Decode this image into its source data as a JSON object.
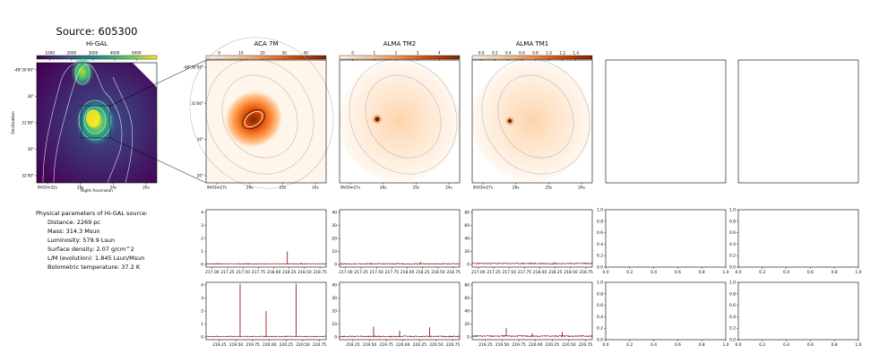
{
  "figure": {
    "title": "Source: 605300"
  },
  "info": {
    "heading": "Physical parameters of Hi-GAL source:",
    "lines": [
      "Distance: 2269 pc",
      "Mass: 314.3 Msun",
      "Luminosity: 579.9 Lsun",
      "Surface density: 2.07 g/cm^2",
      "L/M (evolution): 1.845 Lsun/Msun",
      "Bolometric temperature: 37.2 K"
    ]
  },
  "colors": {
    "viridis": [
      "#440154",
      "#3b528b",
      "#21918c",
      "#5ec962",
      "#fde725"
    ],
    "oranges": [
      "#fff5eb",
      "#fdd0a2",
      "#fd8d3c",
      "#d94801",
      "#7f2704"
    ],
    "spectrum_line": "#8b0000"
  },
  "chart_data": [
    {
      "id": "higal_map",
      "type": "heatmap",
      "title": "Hi-GAL",
      "xlabel": "Right Ascension",
      "ylabel": "Declination",
      "colorbar_ticks": [
        "1000",
        "2000",
        "3000",
        "4000",
        "5000"
      ],
      "x_ticks": [
        "9h03m32s",
        "28s",
        "24s",
        "20s"
      ],
      "y_ticks": [
        "-48°30'00\"",
        "30\"",
        "31'00\"",
        "30\"",
        "32'00\""
      ]
    },
    {
      "id": "aca7m_map",
      "type": "heatmap",
      "title": "ACA 7M",
      "colorbar_ticks": [
        "0",
        "10",
        "20",
        "30",
        "40"
      ],
      "x_ticks": [
        "9h03m27s",
        "26s",
        "25s",
        "24s"
      ],
      "y_ticks": [
        "-48°30'50\"",
        "31'00\"",
        "10\"",
        "20\""
      ]
    },
    {
      "id": "tm2_map",
      "type": "heatmap",
      "title": "ALMA TM2",
      "colorbar_ticks": [
        "0",
        "1",
        "2",
        "3",
        "4"
      ],
      "x_ticks": [
        "9h03m27s",
        "26s",
        "25s",
        "24s"
      ]
    },
    {
      "id": "tm1_map",
      "type": "heatmap",
      "title": "ALMA TM1",
      "colorbar_ticks": [
        "0.0",
        "0.2",
        "0.4",
        "0.6",
        "0.8",
        "1.0",
        "1.2",
        "1.4"
      ],
      "x_ticks": [
        "9h03m27s",
        "26s",
        "25s",
        "24s"
      ]
    },
    {
      "id": "spec_r1_aca",
      "type": "line",
      "x_ticks": [
        "217.00",
        "217.25",
        "217.50",
        "217.75",
        "218.00",
        "218.25",
        "218.50",
        "218.75"
      ],
      "y_ticks": [
        "0",
        "1",
        "2",
        "3",
        "4"
      ],
      "xlim": [
        216.9,
        218.85
      ],
      "ylim": [
        -0.2,
        4.2
      ],
      "baseline": 0.05,
      "noise": 0.03,
      "peaks": [
        {
          "x": 218.22,
          "y": 1.0
        },
        {
          "x": 217.1,
          "y": 0.12
        },
        {
          "x": 218.44,
          "y": 0.15
        }
      ]
    },
    {
      "id": "spec_r1_tm2",
      "type": "line",
      "x_ticks": [
        "217.00",
        "217.25",
        "217.50",
        "217.75",
        "218.00",
        "218.25",
        "218.50",
        "218.75"
      ],
      "y_ticks": [
        "0",
        "10",
        "20",
        "30",
        "40"
      ],
      "xlim": [
        216.9,
        218.85
      ],
      "ylim": [
        -2,
        42
      ],
      "baseline": 0.5,
      "noise": 0.4,
      "peaks": [
        {
          "x": 218.22,
          "y": 2.0
        }
      ]
    },
    {
      "id": "spec_r1_tm1",
      "type": "line",
      "x_ticks": [
        "217.00",
        "217.25",
        "217.50",
        "217.75",
        "218.00",
        "218.25",
        "218.50",
        "218.75"
      ],
      "y_ticks": [
        "0",
        "20",
        "40",
        "60",
        "80"
      ],
      "xlim": [
        216.9,
        218.85
      ],
      "ylim": [
        -4,
        84
      ],
      "baseline": 1.5,
      "noise": 0.9,
      "peaks": [
        {
          "x": 218.22,
          "y": 3.5
        }
      ]
    },
    {
      "id": "spec_r2_aca",
      "type": "line",
      "x_ticks": [
        "219.25",
        "219.50",
        "219.75",
        "220.00",
        "220.25",
        "220.50",
        "220.75"
      ],
      "y_ticks": [
        "0",
        "1",
        "2",
        "3",
        "4"
      ],
      "xlim": [
        219.05,
        220.85
      ],
      "ylim": [
        -0.2,
        4.2
      ],
      "baseline": 0.05,
      "noise": 0.03,
      "peaks": [
        {
          "x": 219.56,
          "y": 4.1
        },
        {
          "x": 219.95,
          "y": 2.0
        },
        {
          "x": 220.4,
          "y": 4.1
        }
      ]
    },
    {
      "id": "spec_r2_tm2",
      "type": "line",
      "x_ticks": [
        "219.25",
        "219.50",
        "219.75",
        "220.00",
        "220.25",
        "220.50",
        "220.75"
      ],
      "y_ticks": [
        "0",
        "10",
        "20",
        "30",
        "40"
      ],
      "xlim": [
        219.05,
        220.85
      ],
      "ylim": [
        -2,
        42
      ],
      "baseline": 0.5,
      "noise": 0.4,
      "peaks": [
        {
          "x": 219.56,
          "y": 8
        },
        {
          "x": 219.95,
          "y": 5
        },
        {
          "x": 220.4,
          "y": 7.5
        }
      ]
    },
    {
      "id": "spec_r2_tm1",
      "type": "line",
      "x_ticks": [
        "219.25",
        "219.50",
        "219.75",
        "220.00",
        "220.25",
        "220.50",
        "220.75"
      ],
      "y_ticks": [
        "0",
        "20",
        "40",
        "60",
        "80"
      ],
      "xlim": [
        219.05,
        220.85
      ],
      "ylim": [
        -4,
        84
      ],
      "baseline": 1.5,
      "noise": 0.9,
      "peaks": [
        {
          "x": 219.56,
          "y": 14
        },
        {
          "x": 219.95,
          "y": 6
        },
        {
          "x": 220.4,
          "y": 8
        }
      ]
    },
    {
      "id": "empty_axes",
      "type": "line",
      "x_ticks": [
        "0.0",
        "0.2",
        "0.4",
        "0.6",
        "0.8",
        "1.0"
      ],
      "y_ticks": [
        "0.0",
        "0.2",
        "0.4",
        "0.6",
        "0.8",
        "1.0"
      ],
      "xlim": [
        0,
        1
      ],
      "ylim": [
        0,
        1
      ]
    }
  ]
}
